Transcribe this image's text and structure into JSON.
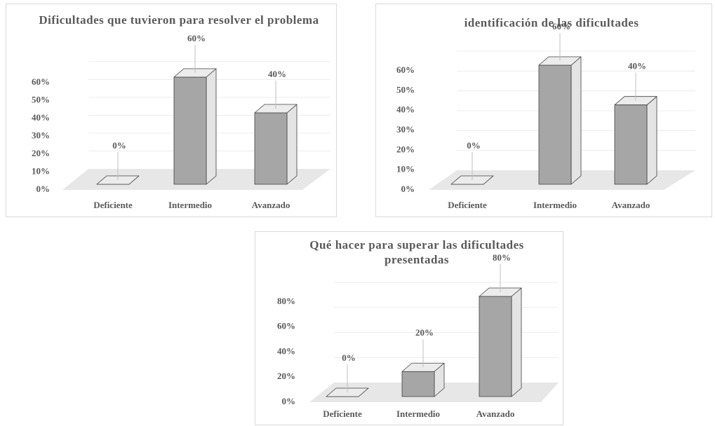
{
  "chart_data": [
    {
      "type": "bar3d",
      "title": "Dificultades que tuvieron para resolver el problema",
      "categories": [
        "Deficiente",
        "Intermedio",
        "Avanzado"
      ],
      "values": [
        0,
        60,
        40
      ],
      "value_labels": [
        "0%",
        "60%",
        "40%"
      ],
      "color": "#a6a6a6",
      "ylim": [
        0,
        60
      ],
      "yticks": [
        {
          "value": 0,
          "label": "0%"
        },
        {
          "value": 10,
          "label": "10%"
        },
        {
          "value": 20,
          "label": "20%"
        },
        {
          "value": 30,
          "label": "30%"
        },
        {
          "value": 40,
          "label": "40%"
        },
        {
          "value": 50,
          "label": "50%"
        },
        {
          "value": 60,
          "label": "60%"
        }
      ],
      "grid": true
    },
    {
      "type": "bar3d",
      "title": "identificación de las dificultades",
      "categories": [
        "Deficiente",
        "Intermedio",
        "Avanzado"
      ],
      "values": [
        0,
        60,
        40
      ],
      "value_labels": [
        "0%",
        "60%",
        "40%"
      ],
      "color": "#a6a6a6",
      "ylim": [
        0,
        60
      ],
      "yticks": [
        {
          "value": 0,
          "label": "0%"
        },
        {
          "value": 10,
          "label": "10%"
        },
        {
          "value": 20,
          "label": "20%"
        },
        {
          "value": 30,
          "label": "30%"
        },
        {
          "value": 40,
          "label": "40%"
        },
        {
          "value": 50,
          "label": "50%"
        },
        {
          "value": 60,
          "label": "60%"
        }
      ],
      "grid": true
    },
    {
      "type": "bar3d",
      "title": "Qué hacer para superar las dificultades presentadas",
      "categories": [
        "Deficiente",
        "Intermedio",
        "Avanzado"
      ],
      "values": [
        0,
        20,
        80
      ],
      "value_labels": [
        "0%",
        "20%",
        "80%"
      ],
      "color": "#a6a6a6",
      "ylim": [
        0,
        80
      ],
      "yticks": [
        {
          "value": 0,
          "label": "0%"
        },
        {
          "value": 20,
          "label": "20%"
        },
        {
          "value": 40,
          "label": "40%"
        },
        {
          "value": 60,
          "label": "60%"
        },
        {
          "value": 80,
          "label": "80%"
        }
      ],
      "grid": true
    }
  ]
}
